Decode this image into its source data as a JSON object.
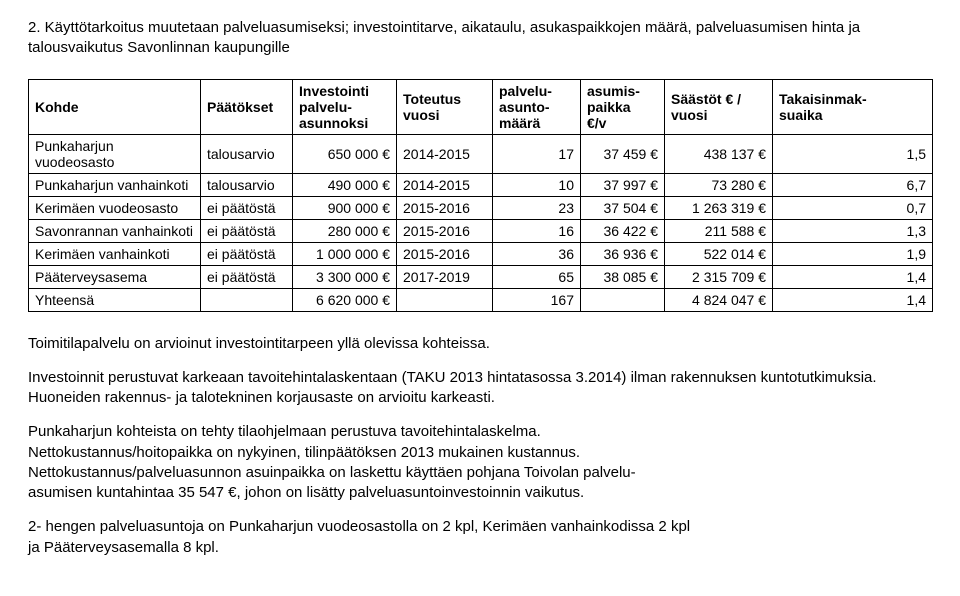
{
  "title_line1": "2. Käyttötarkoitus muutetaan palveluasumiseksi; investointitarve, aikataulu, asukaspaikkojen määrä, palveluasumisen hinta ja",
  "title_line2": "talousvaikutus Savonlinnan kaupungille",
  "table": {
    "headers": {
      "c1": "Kohde",
      "c2": "Päätökset",
      "c3a": "Investointi",
      "c3b": "palvelu-",
      "c3c": "asunnoksi",
      "c4a": "Toteutus",
      "c4b": "vuosi",
      "c5a": "palvelu-",
      "c5b": "asunto-",
      "c5c": "määrä",
      "c6a": "asumis-",
      "c6b": "paikka",
      "c6c": "€/v",
      "c7a": "Säästöt € /",
      "c7b": "vuosi",
      "c8a": "Takaisinmak-",
      "c8b": "suaika"
    },
    "rows": [
      {
        "c1": "Punkaharjun vuodeosasto",
        "c2": "talousarvio",
        "c3": "650 000 €",
        "c4": "2014-2015",
        "c5": "17",
        "c6": "37 459 €",
        "c7": "438 137 €",
        "c8": "1,5"
      },
      {
        "c1": "Punkaharjun vanhainkoti",
        "c2": "talousarvio",
        "c3": "490 000 €",
        "c4": "2014-2015",
        "c5": "10",
        "c6": "37 997 €",
        "c7": "73 280 €",
        "c8": "6,7"
      },
      {
        "c1": "Kerimäen vuodeosasto",
        "c2": "ei päätöstä",
        "c3": "900 000 €",
        "c4": "2015-2016",
        "c5": "23",
        "c6": "37 504 €",
        "c7": "1 263 319 €",
        "c8": "0,7"
      },
      {
        "c1": "Savonrannan vanhainkoti",
        "c2": "ei päätöstä",
        "c3": "280 000 €",
        "c4": "2015-2016",
        "c5": "16",
        "c6": "36 422 €",
        "c7": "211 588 €",
        "c8": "1,3"
      },
      {
        "c1": "Kerimäen vanhainkoti",
        "c2": "ei päätöstä",
        "c3": "1 000 000 €",
        "c4": "2015-2016",
        "c5": "36",
        "c6": "36 936 €",
        "c7": "522 014 €",
        "c8": "1,9"
      },
      {
        "c1": "Pääterveysasema",
        "c2": "ei päätöstä",
        "c3": "3 300 000 €",
        "c4": "2017-2019",
        "c5": "65",
        "c6": "38 085 €",
        "c7": "2 315 709 €",
        "c8": "1,4"
      },
      {
        "c1": "Yhteensä",
        "c2": "",
        "c3": "6 620 000 €",
        "c4": "",
        "c5": "167",
        "c6": "",
        "c7": "4 824 047 €",
        "c8": "1,4"
      }
    ]
  },
  "body": {
    "p1": "Toimitilapalvelu on arvioinut investointitarpeen yllä olevissa kohteissa.",
    "p2": "Investoinnit perustuvat karkeaan tavoitehintalaskentaan (TAKU 2013 hintatasossa 3.2014) ilman rakennuksen kuntotutkimuksia. Huoneiden rakennus- ja talotekninen korjausaste on arvioitu karkeasti.",
    "p3": "Punkaharjun kohteista on tehty tilaohjelmaan perustuva tavoitehintalaskelma.",
    "p4": "Nettokustannus/hoitopaikka on nykyinen, tilinpäätöksen 2013 mukainen kustannus.",
    "p5": "Nettokustannus/palveluasunnon asuinpaikka on laskettu käyttäen pohjana Toivolan palvelu-",
    "p6": "asumisen kuntahintaa 35 547 €, johon on lisätty palveluasuntoinvestoinnin vaikutus.",
    "p7": "2- hengen palveluasuntoja on Punkaharjun vuodeosastolla on 2 kpl, Kerimäen vanhainkodissa 2 kpl",
    "p8": "ja Pääterveysasemalla 8 kpl."
  }
}
